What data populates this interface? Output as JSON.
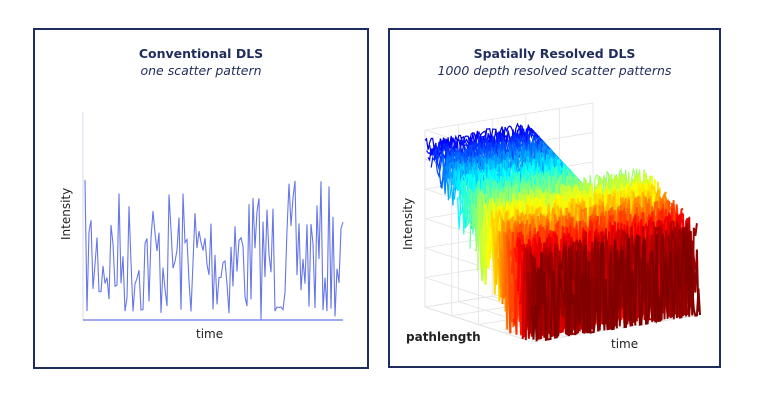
{
  "left_panel": {
    "title": "Conventional DLS",
    "subtitle": "one scatter pattern",
    "y_label": "Intensity",
    "x_label": "time",
    "line_color": "#6677e8"
  },
  "right_panel": {
    "title": "Spatially Resolved DLS",
    "subtitle": "1000 depth resolved scatter patterns",
    "y_label": "Intensity",
    "x_label": "time",
    "depth_label": "pathlength",
    "colormap": "jet"
  }
}
